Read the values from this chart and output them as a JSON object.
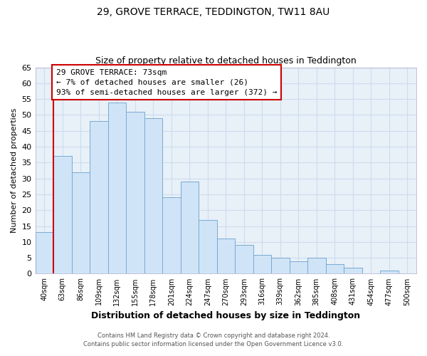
{
  "title": "29, GROVE TERRACE, TEDDINGTON, TW11 8AU",
  "subtitle": "Size of property relative to detached houses in Teddington",
  "xlabel": "Distribution of detached houses by size in Teddington",
  "ylabel": "Number of detached properties",
  "bar_color": "#d0e4f7",
  "bar_edge_color": "#7aaad0",
  "grid_color": "#ccddee",
  "background_color": "#e8f0f8",
  "categories": [
    "40sqm",
    "63sqm",
    "86sqm",
    "109sqm",
    "132sqm",
    "155sqm",
    "178sqm",
    "201sqm",
    "224sqm",
    "247sqm",
    "270sqm",
    "293sqm",
    "316sqm",
    "339sqm",
    "362sqm",
    "385sqm",
    "408sqm",
    "431sqm",
    "454sqm",
    "477sqm",
    "500sqm"
  ],
  "values": [
    13,
    37,
    32,
    48,
    54,
    51,
    49,
    24,
    29,
    17,
    11,
    9,
    6,
    5,
    4,
    5,
    3,
    2,
    0,
    1,
    0
  ],
  "ylim": [
    0,
    65
  ],
  "yticks": [
    0,
    5,
    10,
    15,
    20,
    25,
    30,
    35,
    40,
    45,
    50,
    55,
    60,
    65
  ],
  "property_line_x": 1,
  "property_line_color": "#cc0000",
  "annotation_text": "29 GROVE TERRACE: 73sqm\n← 7% of detached houses are smaller (26)\n93% of semi-detached houses are larger (372) →",
  "annotation_box_color": "#ffffff",
  "annotation_box_edge_color": "#cc0000",
  "footer1": "Contains HM Land Registry data © Crown copyright and database right 2024.",
  "footer2": "Contains public sector information licensed under the Open Government Licence v3.0."
}
